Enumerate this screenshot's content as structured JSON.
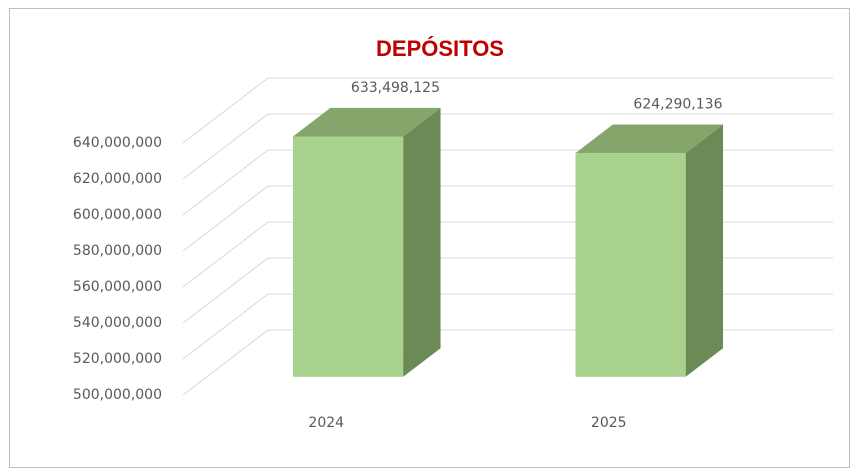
{
  "chart_data": {
    "type": "bar3d",
    "title": "DEPÓSITOS",
    "categories": [
      "2024",
      "2025"
    ],
    "values": [
      633498125,
      624290136
    ],
    "value_labels": [
      "633,498,125",
      "624,290,136"
    ],
    "color": "#a9d18e",
    "ylim": [
      500000000,
      640000000
    ],
    "yticks": [
      {
        "value": 500000000,
        "label": "500,000,000"
      },
      {
        "value": 520000000,
        "label": "520,000,000"
      },
      {
        "value": 540000000,
        "label": "540,000,000"
      },
      {
        "value": 560000000,
        "label": "560,000,000"
      },
      {
        "value": 580000000,
        "label": "580,000,000"
      },
      {
        "value": 600000000,
        "label": "600,000,000"
      },
      {
        "value": 620000000,
        "label": "620,000,000"
      },
      {
        "value": 640000000,
        "label": "640,000,000"
      }
    ],
    "grid": true
  }
}
